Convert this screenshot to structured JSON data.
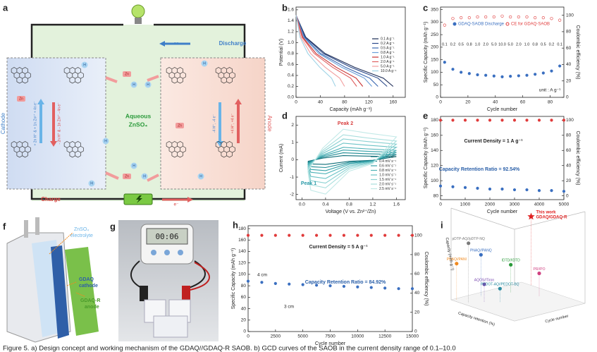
{
  "caption": "Figure 5. a) Design concept and working mechanism of the GDAQ//GDAQ-R SAOB. b) GCD curves of the SAOB in the current density range of 0.1–10.0",
  "panel_a": {
    "panel": "a",
    "discharge": "Discharge",
    "charge": "Charge",
    "electrolyte": [
      "Aqueous",
      "ZnSO₄"
    ],
    "cathode": "Cathode",
    "anode": "Anode",
    "electron": "e⁻",
    "ion_zn": "Zn",
    "ion_h": "H",
    "cathode_discharge": "+ 2n H⁺ & + 1n Zn²⁺ + 4n e⁻",
    "cathode_charge": "- 2n H⁺ & - 1n Zn²⁺ - 4n e⁻",
    "anode_discharge": "-4 H⁺, -4 e⁻",
    "anode_charge": "+4 H⁺, +4 e⁻"
  },
  "panel_f": {
    "panel": "f",
    "electrolyte": [
      "ZnSO₄",
      "electrolyte"
    ],
    "cathode": [
      "GDAQ",
      "cathode"
    ],
    "anode": [
      "GDAQ-R",
      "anode"
    ]
  },
  "panel_g": {
    "panel": "g",
    "display": "00:06"
  },
  "chart_data": [
    {
      "panel": "b",
      "type": "line",
      "xlabel": "Capacity (mAh g⁻¹)",
      "ylabel": "Potential (V)",
      "xlim": [
        0,
        180
      ],
      "xticks": [
        0,
        40,
        80,
        120,
        160
      ],
      "ylim": [
        0,
        1.65
      ],
      "yticks": [
        {
          "value": 0,
          "label": "0.0"
        },
        0.2,
        0.4,
        0.6,
        0.8,
        {
          "value": 1,
          "label": "1.0"
        },
        1.2,
        1.4,
        1.6
      ],
      "series": [
        {
          "name": "0.1 A g⁻¹",
          "color": "#1b2a55",
          "x": [
            0,
            16,
            48,
            96,
            144,
            160
          ],
          "values": [
            1.5,
            1.1,
            0.8,
            0.55,
            0.35,
            0.2
          ]
        },
        {
          "name": "0.2 A g⁻¹",
          "color": "#2c4a8a",
          "x": [
            0,
            15,
            45,
            90,
            135,
            150
          ],
          "values": [
            1.5,
            1.1,
            0.8,
            0.55,
            0.35,
            0.2
          ]
        },
        {
          "name": "0.5 A g⁻¹",
          "color": "#3a67b0",
          "x": [
            0,
            13.5,
            40.5,
            81,
            121.5,
            135
          ],
          "values": [
            1.5,
            1.1,
            0.8,
            0.55,
            0.35,
            0.2
          ]
        },
        {
          "name": "0.8 A g⁻¹",
          "color": "#6a9fd8",
          "x": [
            0,
            12.5,
            37.5,
            75,
            112.5,
            125
          ],
          "values": [
            1.5,
            1.1,
            0.8,
            0.55,
            0.35,
            0.2
          ]
        },
        {
          "name": "1.0 A g⁻¹",
          "color": "#c83030",
          "x": [
            0,
            11,
            33,
            66,
            99,
            110
          ],
          "values": [
            1.5,
            1.1,
            0.8,
            0.55,
            0.35,
            0.2
          ]
        },
        {
          "name": "2.0 A g⁻¹",
          "color": "#e06060",
          "x": [
            0,
            10,
            30,
            60,
            90,
            100
          ],
          "values": [
            1.5,
            1.1,
            0.8,
            0.55,
            0.35,
            0.2
          ]
        },
        {
          "name": "5.0 A g⁻¹",
          "color": "#f2a0a0",
          "x": [
            0,
            8,
            24,
            48,
            72,
            80
          ],
          "values": [
            1.5,
            1.1,
            0.8,
            0.55,
            0.35,
            0.2
          ]
        },
        {
          "name": "10.0 A g⁻¹",
          "color": "#9fd3e6",
          "x": [
            0,
            6.5,
            19.5,
            39,
            58.5,
            65
          ],
          "values": [
            1.5,
            1.1,
            0.8,
            0.55,
            0.35,
            0.2
          ]
        }
      ]
    },
    {
      "panel": "c",
      "type": "scatter",
      "xlabel": "Cycle number",
      "ylabel": "Specific Capacity (mAh g⁻¹)",
      "y2label": "Coulombic efficiency (%)",
      "xlim": [
        0,
        90
      ],
      "xticks": [
        0,
        20,
        40,
        60,
        80
      ],
      "ylim": [
        0,
        360
      ],
      "yticks": [
        0,
        50,
        100,
        150,
        200,
        250,
        300,
        350
      ],
      "y2lim": [
        0,
        110
      ],
      "y2ticks": [
        0,
        20,
        40,
        60,
        80,
        100
      ],
      "x": [
        3,
        9,
        15,
        21,
        27,
        33,
        39,
        45,
        51,
        57,
        63,
        69,
        75,
        81,
        87
      ],
      "series": [
        {
          "name": "GDAQ-SAOB Discharge",
          "color": "#3a6fc0",
          "values": [
            140,
            112,
            100,
            95,
            90,
            88,
            85,
            82,
            84,
            86,
            88,
            92,
            97,
            105,
            125
          ]
        },
        {
          "name": "CE for GDAQ-SAOB",
          "color": "#e03a3a",
          "axis": "y2",
          "values": [
            88,
            96,
            97,
            97,
            98,
            98,
            98,
            99,
            98,
            98,
            98,
            97,
            97,
            96,
            94
          ]
        }
      ],
      "rate_labels": [
        "0.1",
        "0.2",
        "0.5",
        "0.8",
        "1.0",
        "2.0",
        "5.0",
        "10.0",
        "5.0",
        "2.0",
        "1.0",
        "0.8",
        "0.5",
        "0.2",
        "0.1"
      ],
      "annotations": [
        "unit : A g⁻¹"
      ]
    },
    {
      "panel": "d",
      "type": "line",
      "xlabel": "Voltage (V vs. Zn²⁺/Zn)",
      "ylabel": "Current (mA)",
      "xlim": [
        -0.1,
        1.75
      ],
      "xticks": [
        {
          "value": 0,
          "label": "0.0"
        },
        0.4,
        0.8,
        1.2,
        1.6
      ],
      "ylim": [
        -2.3,
        2.5
      ],
      "yticks": [
        -2,
        -1,
        0,
        1,
        2
      ],
      "x": [
        0.1,
        0.35,
        0.7,
        1.1,
        1.6,
        1.2,
        0.8,
        0.4,
        0.15,
        0.1
      ],
      "series": [
        {
          "name": "0.2 mV s⁻¹",
          "color": "#0e6e78",
          "values": [
            -0.09,
            0.09,
            0.24,
            0.21,
            0.18,
            -0.03,
            -0.09,
            -0.27,
            -0.24,
            -0.09
          ]
        },
        {
          "name": "0.4 mV s⁻¹",
          "color": "#1f8a93",
          "values": [
            -0.15,
            0.15,
            0.4,
            0.35,
            0.3,
            -0.05,
            -0.15,
            -0.45,
            -0.4,
            -0.15
          ]
        },
        {
          "name": "0.6 mV s⁻¹",
          "color": "#35a1a8",
          "values": [
            -0.21,
            0.21,
            0.56,
            0.49,
            0.42,
            -0.07,
            -0.21,
            -0.63,
            -0.56,
            -0.21
          ]
        },
        {
          "name": "0.8 mV s⁻¹",
          "color": "#4fb3b8",
          "values": [
            -0.27,
            0.27,
            0.72,
            0.63,
            0.54,
            -0.09,
            -0.27,
            -0.81,
            -0.72,
            -0.27
          ]
        },
        {
          "name": "1.0 mV s⁻¹",
          "color": "#6cc3c6",
          "values": [
            -0.36,
            0.36,
            0.96,
            0.84,
            0.72,
            -0.12,
            -0.36,
            -1.08,
            -0.96,
            -0.36
          ]
        },
        {
          "name": "1.5 mV s⁻¹",
          "color": "#8ad1d2",
          "values": [
            -0.45,
            0.45,
            1.2,
            1.05,
            0.9,
            -0.15,
            -0.45,
            -1.35,
            -1.2,
            -0.45
          ]
        },
        {
          "name": "2.0 mV s⁻¹",
          "color": "#a8dedd",
          "values": [
            -0.54,
            0.54,
            1.44,
            1.26,
            1.08,
            -0.18,
            -0.54,
            -1.62,
            -1.44,
            -0.54
          ]
        },
        {
          "name": "2.5 mV s⁻¹",
          "color": "#c2e9e7",
          "values": [
            -0.66,
            0.66,
            1.76,
            1.54,
            1.32,
            -0.22,
            -0.66,
            -1.98,
            -1.76,
            -0.66
          ]
        }
      ],
      "annotations": [
        "Peak 2",
        "Peak 1"
      ]
    },
    {
      "panel": "e",
      "type": "scatter",
      "xlabel": "Cycle number",
      "ylabel": "Specific Capacity (mAh g⁻¹)",
      "y2label": "Coulombic efficiency (%)",
      "xlim": [
        0,
        5000
      ],
      "xticks": [
        0,
        1000,
        2000,
        3000,
        4000,
        5000
      ],
      "ylim": [
        75,
        185
      ],
      "yticks": [
        80,
        100,
        120,
        140,
        160,
        180
      ],
      "y2lim": [
        -5,
        105
      ],
      "y2ticks": [
        0,
        20,
        40,
        60,
        80,
        100
      ],
      "x": [
        0,
        500,
        1000,
        1500,
        2000,
        2500,
        3000,
        3500,
        4000,
        4500,
        5000
      ],
      "series": [
        {
          "color": "#3a6fc0",
          "values": [
            93,
            92,
            91,
            90,
            89,
            89,
            88,
            88,
            87,
            87,
            86
          ]
        },
        {
          "color": "#e03a3a",
          "axis": "y2",
          "values": [
            100,
            100,
            100,
            100,
            100,
            100,
            100,
            100,
            100,
            100,
            100
          ]
        }
      ],
      "annotations": [
        "Current Density = 1 A g⁻¹",
        "Capacity Retention Ratio = 92.54%"
      ]
    },
    {
      "panel": "h",
      "type": "scatter",
      "xlabel": "Cycle number",
      "ylabel": "Specific Capacity (mAh g⁻¹)",
      "y2label": "Coulombic efficiency (%)",
      "xlim": [
        0,
        15000
      ],
      "xticks": [
        0,
        2500,
        5000,
        7500,
        10000,
        12500,
        15000
      ],
      "ylim": [
        0,
        185
      ],
      "yticks": [
        0,
        20,
        40,
        60,
        80,
        100,
        120,
        140,
        160,
        180
      ],
      "y2lim": [
        0,
        110
      ],
      "y2ticks": [
        0,
        20,
        40,
        60,
        80,
        100
      ],
      "x": [
        0,
        1250,
        2500,
        3750,
        5000,
        6250,
        7500,
        8750,
        10000,
        11250,
        12500,
        13750,
        15000
      ],
      "series": [
        {
          "color": "#3a6fc0",
          "values": [
            88,
            86,
            84,
            83,
            82,
            81,
            80,
            79,
            78,
            77,
            76,
            75,
            75
          ]
        },
        {
          "color": "#e03a3a",
          "axis": "y2",
          "values": [
            100,
            100,
            100,
            100,
            100,
            100,
            100,
            100,
            100,
            100,
            100,
            100,
            100
          ]
        }
      ],
      "annotations": [
        "Current Density = 5 A g⁻¹",
        "Capacity Retention Ratio = 84.92%",
        "4 cm",
        "3 cm"
      ]
    },
    {
      "panel": "i",
      "type": "scatter3d",
      "xlabel": "Capacity retention (%)",
      "ylabel": "Cycle number",
      "zlabel": "Capacity (mAh g⁻¹)",
      "xlim": [
        0,
        100
      ],
      "ylim": [
        0,
        15000
      ],
      "zlim": [
        0,
        200
      ],
      "points": [
        {
          "label": [
            "This work",
            "GDAQ/GDAQ-R"
          ],
          "color": "#e02020",
          "x": 85,
          "y": 15000,
          "z": 150
        },
        {
          "label": [
            "pDTP-AQ//pDTP-NQ"
          ],
          "color": "#7a7a7a",
          "x": 80,
          "y": 1000,
          "z": 130
        },
        {
          "label": [
            "PNAQ//PANQ"
          ],
          "color": "#3a6fc0",
          "x": 90,
          "y": 5000,
          "z": 90
        },
        {
          "label": [
            "IDTD//IDTD"
          ],
          "color": "#2a9a3a",
          "x": 80,
          "y": 10000,
          "z": 60
        },
        {
          "label": [
            "PDAQ//PANI"
          ],
          "color": "#f08a20",
          "x": 95,
          "y": 500,
          "z": 80
        },
        {
          "label": [
            "AQOS//Tiron"
          ],
          "color": "#7a4ab0",
          "x": 70,
          "y": 3000,
          "z": 40
        },
        {
          "label": [
            "PEDOT-AQ//PEDOT-BQ"
          ],
          "color": "#2a8aa0",
          "x": 60,
          "y": 5000,
          "z": 30
        },
        {
          "label": [
            "PR//PO"
          ],
          "color": "#d04080",
          "x": 50,
          "y": 12000,
          "z": 50
        }
      ]
    }
  ]
}
